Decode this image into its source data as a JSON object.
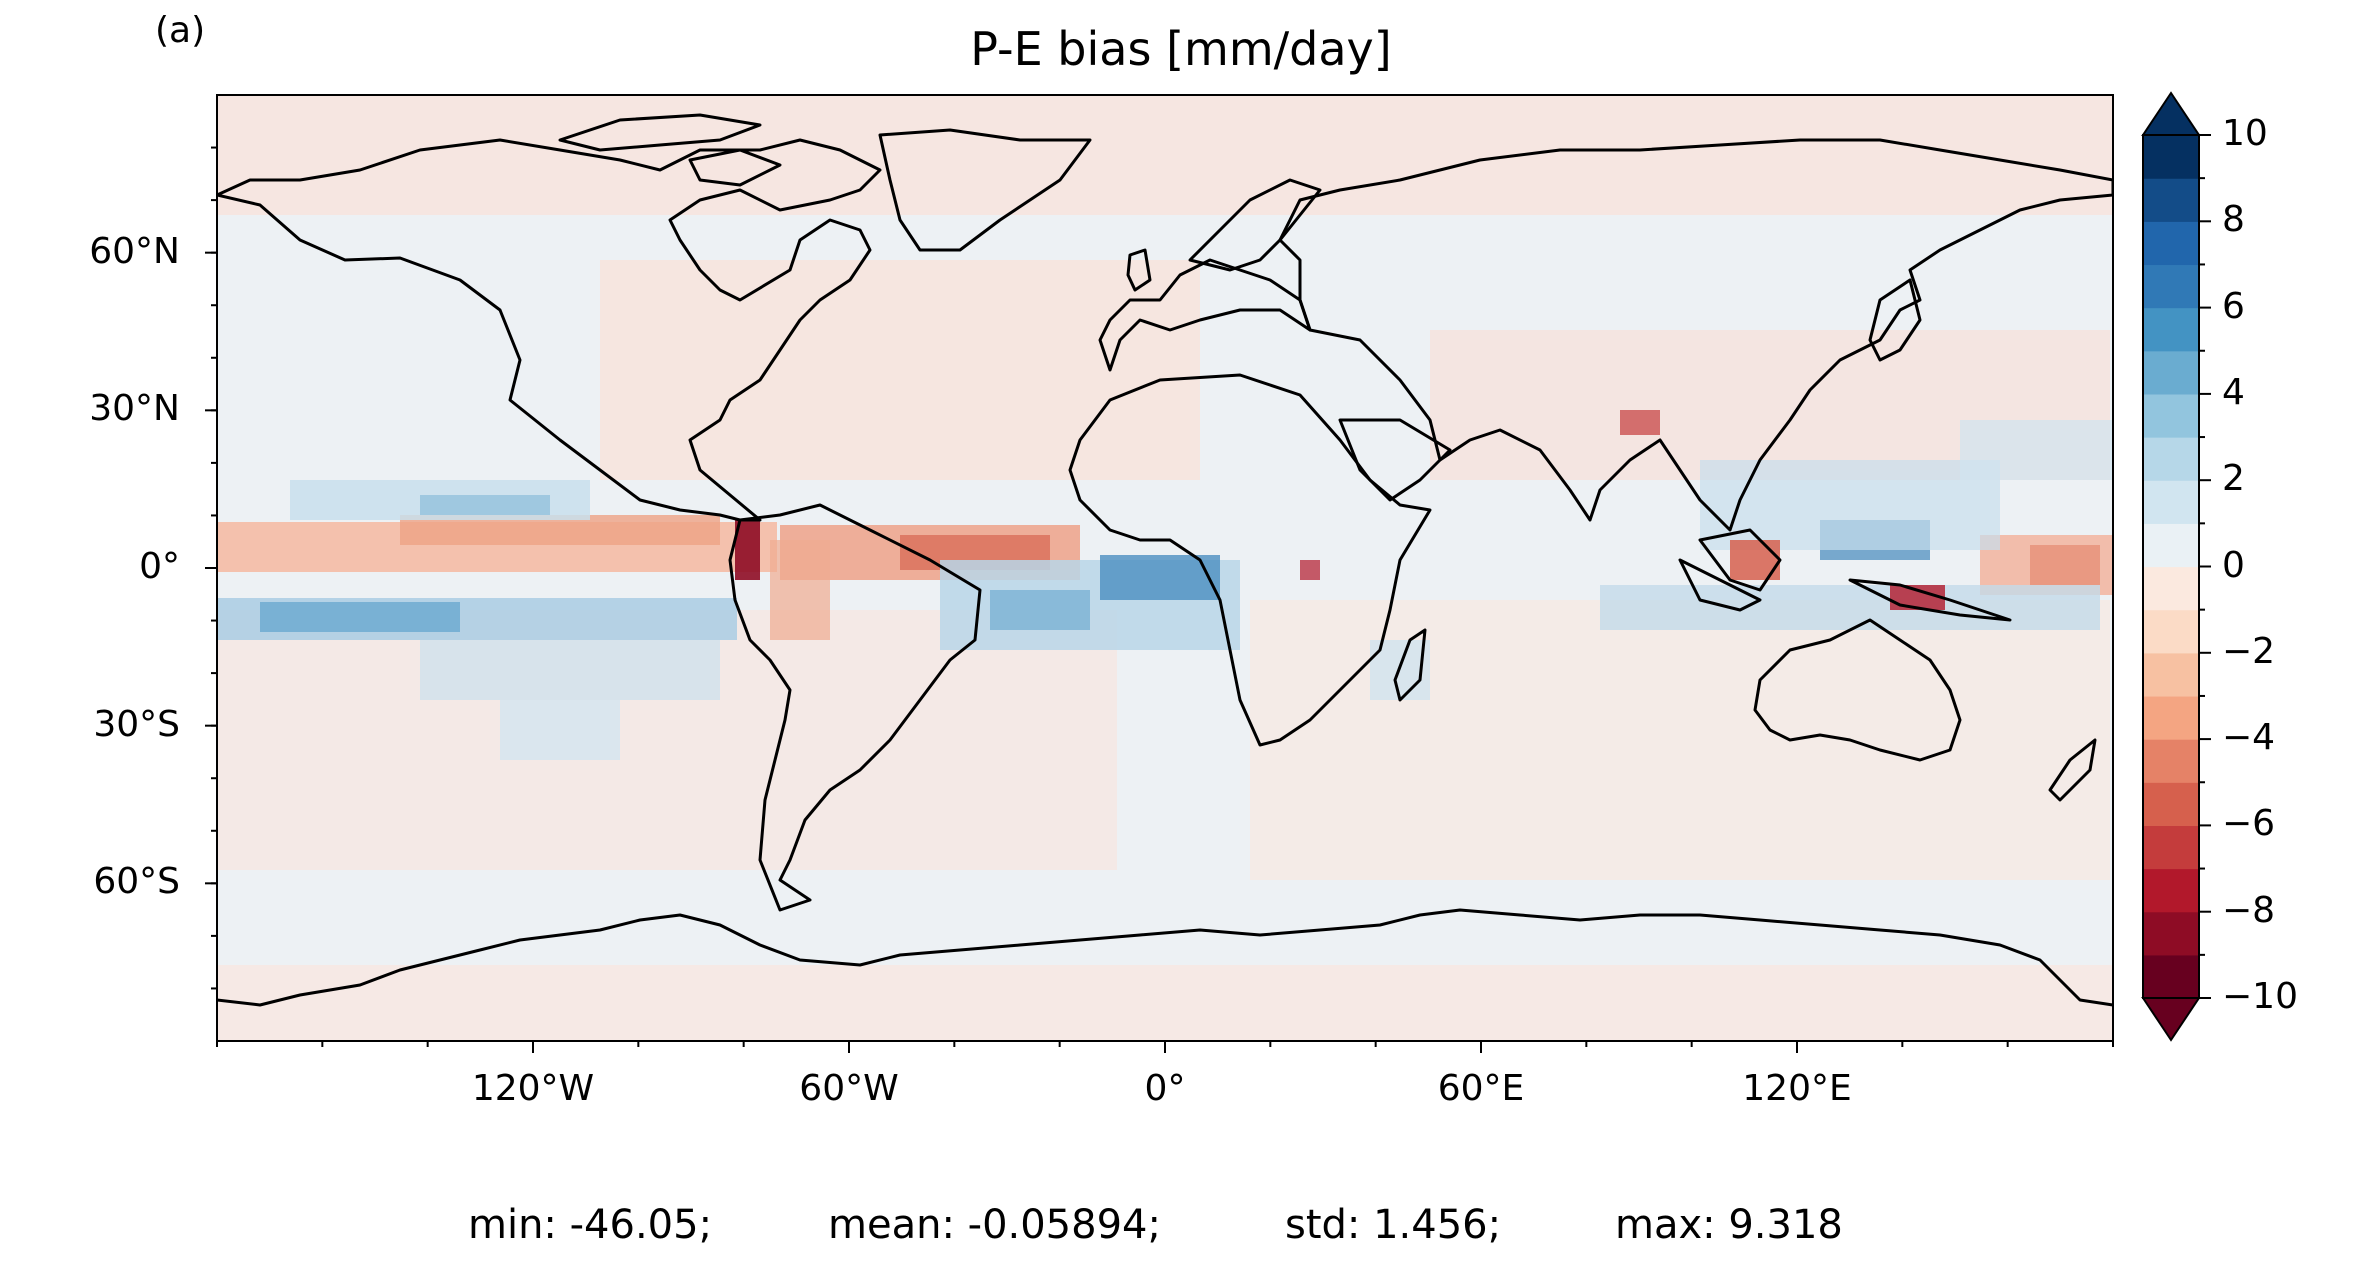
{
  "panel_label": "(a)",
  "title": "P-E bias [mm/day]",
  "map": {
    "projection": "PlateCarree",
    "extent_lon": [
      -180,
      180
    ],
    "extent_lat": [
      -90,
      90
    ],
    "coastlines": true,
    "lat_ticks": [
      {
        "value": 60,
        "label": "60°N"
      },
      {
        "value": 30,
        "label": "30°N"
      },
      {
        "value": 0,
        "label": "0°"
      },
      {
        "value": -30,
        "label": "30°S"
      },
      {
        "value": -60,
        "label": "60°S"
      }
    ],
    "lon_ticks": [
      {
        "value": -120,
        "label": "120°W"
      },
      {
        "value": -60,
        "label": "60°W"
      },
      {
        "value": 0,
        "label": "0°"
      },
      {
        "value": 60,
        "label": "60°E"
      },
      {
        "value": 120,
        "label": "120°E"
      }
    ]
  },
  "colorbar": {
    "cmap": "RdBu",
    "vmin": -10,
    "vmax": 10,
    "extend": "both",
    "levels": 20,
    "tick_labels": [
      {
        "value": 10,
        "label": "10"
      },
      {
        "value": 8,
        "label": "8"
      },
      {
        "value": 6,
        "label": "6"
      },
      {
        "value": 4,
        "label": "4"
      },
      {
        "value": 2,
        "label": "2"
      },
      {
        "value": 0,
        "label": "0"
      },
      {
        "value": -2,
        "label": "−2"
      },
      {
        "value": -4,
        "label": "−4"
      },
      {
        "value": -6,
        "label": "−6"
      },
      {
        "value": -8,
        "label": "−8"
      },
      {
        "value": -10,
        "label": "−10"
      }
    ],
    "colors": [
      "#67001f",
      "#8e0c25",
      "#b2182b",
      "#c43c3c",
      "#d6604d",
      "#e58267",
      "#f4a582",
      "#f7c1a2",
      "#fbdbc6",
      "#fbe9df",
      "#eaf1f5",
      "#d1e5f0",
      "#b6d7e8",
      "#92c5de",
      "#6aacd0",
      "#4393c3",
      "#3079b6",
      "#2166ac",
      "#134c88",
      "#053061"
    ]
  },
  "stats": {
    "min": "min: -46.05;",
    "mean": "mean: -0.05894;",
    "std": "std: 1.456;",
    "max": "max: 9.318"
  }
}
